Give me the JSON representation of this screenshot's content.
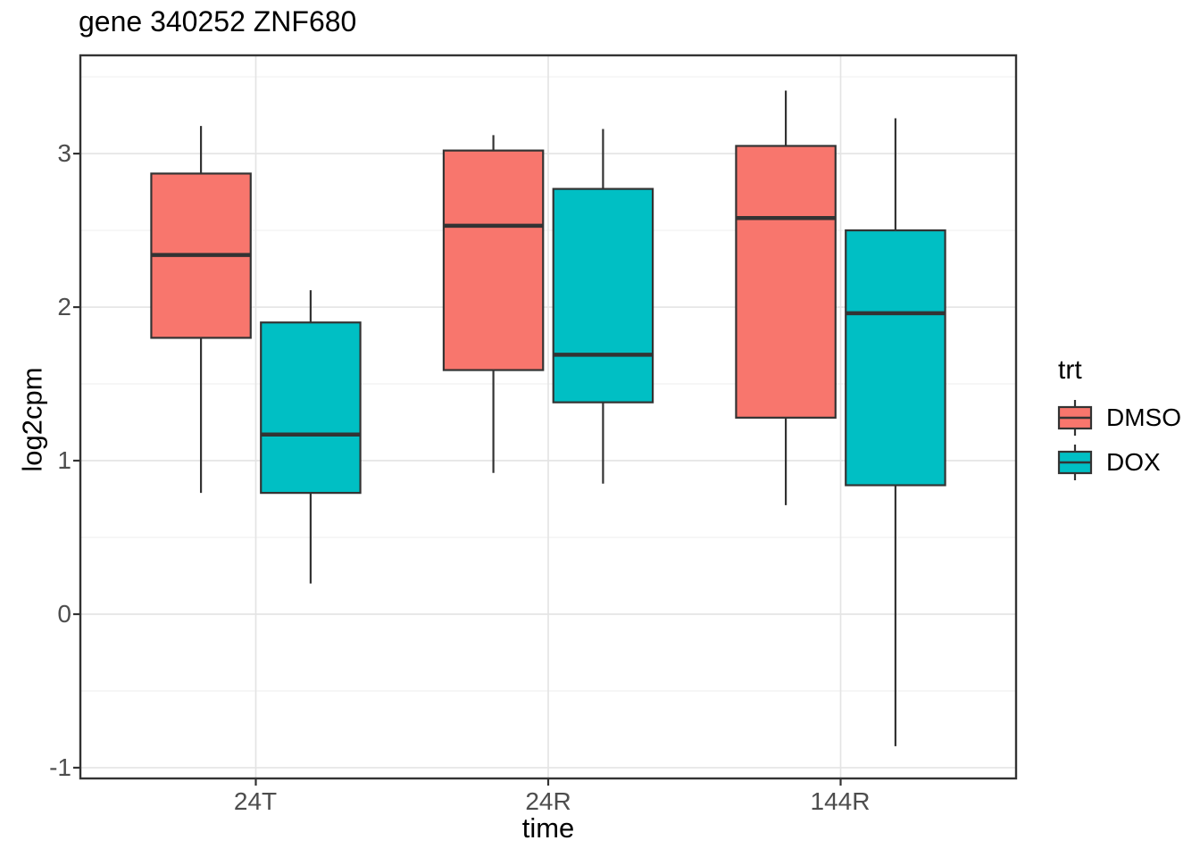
{
  "chart_data": {
    "type": "boxplot",
    "title": "gene 340252 ZNF680",
    "xlabel": "time",
    "ylabel": "log2cpm",
    "categories": [
      "24T",
      "24R",
      "144R"
    ],
    "y_tick_labels": [
      "3",
      "2",
      "1",
      "0",
      "-1"
    ],
    "y_tick_values": [
      3,
      2,
      1,
      0,
      -1
    ],
    "ylim": [
      -1.07,
      3.64
    ],
    "grid": {
      "major": [
        -1,
        0,
        1,
        2,
        3
      ],
      "minor": [
        -0.5,
        0.5,
        1.5,
        2.5,
        3.5
      ]
    },
    "legend": {
      "title": "trt",
      "position": "right",
      "entries": [
        {
          "label": "DMSO",
          "color": "#F8766D"
        },
        {
          "label": "DOX",
          "color": "#00BFC4"
        }
      ]
    },
    "colors": {
      "box_outline": "#333333",
      "panel_border": "#333333",
      "grid_major": "#E4E4E4",
      "grid_minor": "#F0F0F0",
      "axis_text": "#4D4D4D"
    },
    "series": [
      {
        "name": "DMSO",
        "color": "#F8766D",
        "boxes": [
          {
            "category": "24T",
            "whisker_low": 0.79,
            "q1": 1.8,
            "median": 2.34,
            "q3": 2.87,
            "whisker_high": 3.18
          },
          {
            "category": "24R",
            "whisker_low": 0.92,
            "q1": 1.59,
            "median": 2.53,
            "q3": 3.02,
            "whisker_high": 3.12
          },
          {
            "category": "144R",
            "whisker_low": 0.71,
            "q1": 1.28,
            "median": 2.58,
            "q3": 3.05,
            "whisker_high": 3.41
          }
        ]
      },
      {
        "name": "DOX",
        "color": "#00BFC4",
        "boxes": [
          {
            "category": "24T",
            "whisker_low": 0.2,
            "q1": 0.79,
            "median": 1.17,
            "q3": 1.9,
            "whisker_high": 2.11
          },
          {
            "category": "24R",
            "whisker_low": 0.85,
            "q1": 1.38,
            "median": 1.69,
            "q3": 2.77,
            "whisker_high": 3.16
          },
          {
            "category": "144R",
            "whisker_low": -0.86,
            "q1": 0.84,
            "median": 1.96,
            "q3": 2.5,
            "whisker_high": 3.23
          }
        ]
      }
    ]
  }
}
